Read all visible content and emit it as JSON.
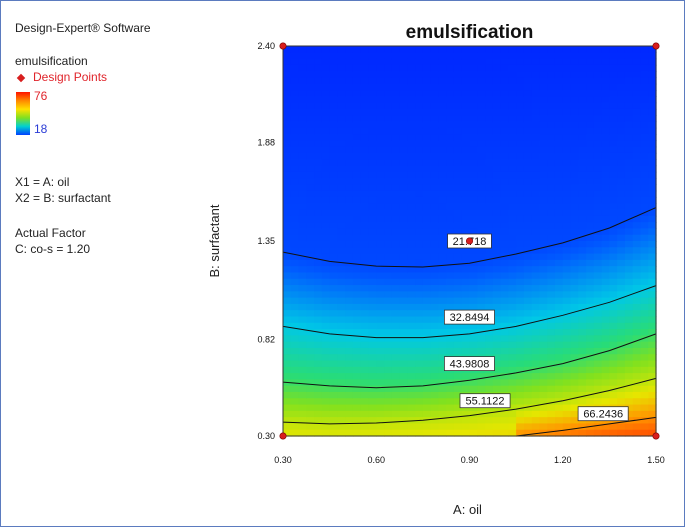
{
  "software_label": "Design-Expert® Software",
  "response_name": "emulsification",
  "legend": {
    "design_points_label": "Design Points",
    "color_high": "76",
    "color_low": "18"
  },
  "factor_lines": [
    "X1 = A: oil",
    "X2 = B: surfactant"
  ],
  "actual_factor": {
    "heading": "Actual Factor",
    "value_line": "C: co-s = 1.20"
  },
  "colors": {
    "design_point": "#d81e1e",
    "high_label": "#e0242b",
    "low_label": "#2a3bd6",
    "frame": "#5b7bbf"
  },
  "chart_data": {
    "type": "heatmap",
    "title": "emulsification",
    "xlabel": "A: oil",
    "ylabel": "B: surfactant",
    "xlim": [
      0.3,
      1.5
    ],
    "ylim": [
      0.3,
      2.4
    ],
    "x_ticks": [
      "0.30",
      "0.60",
      "0.90",
      "1.20",
      "1.50"
    ],
    "y_ticks": [
      "0.30",
      "0.82",
      "1.35",
      "1.88",
      "2.40"
    ],
    "color_range": [
      18,
      76
    ],
    "contours": [
      {
        "label": "21.718",
        "label_at": [
          0.9,
          1.35
        ],
        "points": [
          [
            0.3,
            1.29
          ],
          [
            0.45,
            1.24
          ],
          [
            0.6,
            1.215
          ],
          [
            0.75,
            1.21
          ],
          [
            0.9,
            1.23
          ],
          [
            1.05,
            1.28
          ],
          [
            1.2,
            1.34
          ],
          [
            1.35,
            1.42
          ],
          [
            1.5,
            1.53
          ]
        ]
      },
      {
        "label": "32.8494",
        "label_at": [
          0.9,
          0.94
        ],
        "points": [
          [
            0.3,
            0.89
          ],
          [
            0.45,
            0.85
          ],
          [
            0.6,
            0.83
          ],
          [
            0.75,
            0.83
          ],
          [
            0.9,
            0.85
          ],
          [
            1.05,
            0.89
          ],
          [
            1.2,
            0.95
          ],
          [
            1.35,
            1.02
          ],
          [
            1.5,
            1.11
          ]
        ]
      },
      {
        "label": "43.9808",
        "label_at": [
          0.9,
          0.69
        ],
        "points": [
          [
            0.3,
            0.59
          ],
          [
            0.45,
            0.57
          ],
          [
            0.6,
            0.56
          ],
          [
            0.75,
            0.57
          ],
          [
            0.9,
            0.6
          ],
          [
            1.05,
            0.64
          ],
          [
            1.2,
            0.69
          ],
          [
            1.35,
            0.76
          ],
          [
            1.5,
            0.85
          ]
        ]
      },
      {
        "label": "55.1122",
        "label_at": [
          0.95,
          0.49
        ],
        "points": [
          [
            0.3,
            0.375
          ],
          [
            0.45,
            0.365
          ],
          [
            0.6,
            0.37
          ],
          [
            0.75,
            0.385
          ],
          [
            0.9,
            0.41
          ],
          [
            1.05,
            0.445
          ],
          [
            1.2,
            0.49
          ],
          [
            1.35,
            0.545
          ],
          [
            1.5,
            0.61
          ]
        ]
      },
      {
        "label": "66.2436",
        "label_at": [
          1.33,
          0.42
        ],
        "points": [
          [
            1.05,
            0.3
          ],
          [
            1.2,
            0.33
          ],
          [
            1.35,
            0.365
          ],
          [
            1.5,
            0.4
          ]
        ]
      }
    ],
    "design_points": [
      {
        "x": 0.3,
        "y": 2.4
      },
      {
        "x": 1.5,
        "y": 2.4
      },
      {
        "x": 0.9,
        "y": 1.35
      },
      {
        "x": 0.3,
        "y": 0.3
      },
      {
        "x": 1.5,
        "y": 0.3
      }
    ]
  }
}
